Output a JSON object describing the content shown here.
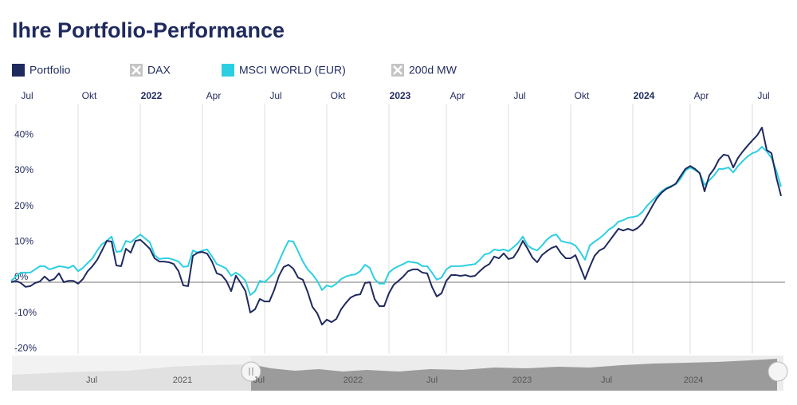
{
  "chart_data": {
    "type": "line",
    "title": "Ihre Portfolio-Performance",
    "categories": [
      null,
      "Jul",
      null,
      null,
      null,
      null,
      null,
      null,
      null,
      null,
      null,
      null,
      null,
      null,
      "Okt",
      null,
      null,
      null,
      null,
      null,
      null,
      null,
      null,
      null,
      null,
      null,
      null,
      "2022",
      null,
      null,
      null,
      null,
      null,
      null,
      null,
      null,
      null,
      null,
      null,
      null,
      "Apr",
      null,
      null,
      null,
      null,
      null,
      null,
      null,
      null,
      null,
      null,
      null,
      null,
      "Jul",
      null,
      null,
      null,
      null,
      null,
      null,
      null,
      null,
      null,
      null,
      null,
      null,
      "Okt",
      null,
      null,
      null,
      null,
      null,
      null,
      null,
      null,
      null,
      null,
      null,
      null,
      "2023",
      null,
      null,
      null,
      null,
      null,
      null,
      null,
      null,
      null,
      null,
      null,
      "Apr",
      null,
      null,
      null,
      null,
      null,
      null,
      null,
      null,
      null,
      null,
      null,
      null,
      "Jul",
      null,
      null,
      null,
      null,
      null,
      null,
      null,
      null,
      null,
      null,
      null,
      null,
      "Okt",
      null,
      null,
      null,
      null,
      null,
      null,
      null,
      null,
      null,
      null,
      null,
      null,
      "2024",
      null,
      null,
      null,
      null,
      null,
      null,
      null,
      null,
      null,
      null,
      null,
      "Apr",
      null,
      null,
      null,
      null,
      null,
      null,
      null,
      null,
      null,
      null,
      null,
      null,
      "Jul",
      null,
      null,
      null,
      null,
      null,
      null
    ],
    "series": [
      {
        "name": "Portfolio",
        "color": "#1f2a5e",
        "values": [
          0.0,
          0.4,
          -0.2,
          -1.3,
          -1.1,
          -0.2,
          0.2,
          1.6,
          0.4,
          0.9,
          2.5,
          0.0,
          0.4,
          0.4,
          -0.4,
          0.9,
          3.1,
          4.5,
          6.3,
          8.9,
          11.6,
          11.4,
          4.7,
          4.5,
          9.4,
          8.3,
          11.6,
          11.9,
          10.7,
          9.4,
          6.7,
          5.8,
          5.8,
          5.6,
          5.1,
          3.1,
          -0.9,
          -1.1,
          7.4,
          8.3,
          8.5,
          8.0,
          5.8,
          2.5,
          2.0,
          0.4,
          -2.5,
          1.8,
          -0.2,
          -2.5,
          -8.5,
          -7.6,
          -4.7,
          -5.4,
          -5.4,
          -2.2,
          1.8,
          4.3,
          4.9,
          3.8,
          1.3,
          0.7,
          -2.7,
          -6.9,
          -8.7,
          -11.9,
          -10.5,
          -11.2,
          -10.3,
          -7.6,
          -5.8,
          -4.3,
          -3.6,
          -3.4,
          -0.2,
          0.0,
          -4.7,
          -6.7,
          -6.7,
          -3.1,
          -0.7,
          0.4,
          1.6,
          3.1,
          3.6,
          3.6,
          2.7,
          2.5,
          -1.3,
          -4.0,
          -3.1,
          0.4,
          2.0,
          2.0,
          1.8,
          2.0,
          1.6,
          1.8,
          3.1,
          4.3,
          5.1,
          7.2,
          6.7,
          8.1,
          6.5,
          6.9,
          8.9,
          11.6,
          9.4,
          6.9,
          5.6,
          7.6,
          8.7,
          9.6,
          10.1,
          8.1,
          6.7,
          6.7,
          7.6,
          4.3,
          0.9,
          4.3,
          7.4,
          8.9,
          9.6,
          11.4,
          13.2,
          15.0,
          14.5,
          15.0,
          14.5,
          15.2,
          16.5,
          18.8,
          21.2,
          23.5,
          25.1,
          26.2,
          26.8,
          27.7,
          29.8,
          31.8,
          32.6,
          31.8,
          30.6,
          25.5,
          30.0,
          31.8,
          34.4,
          35.8,
          35.5,
          32.2,
          34.9,
          36.7,
          38.3,
          39.8,
          41.2,
          43.4,
          37.1,
          36.2,
          29.5,
          24.2
        ]
      },
      {
        "name": "DAX",
        "visible": false
      },
      {
        "name": "MSCI WORLD (EUR)",
        "color": "#2ccfe2",
        "values": [
          0.4,
          1.6,
          2.7,
          2.7,
          2.7,
          3.6,
          4.5,
          4.5,
          3.6,
          4.0,
          4.5,
          4.3,
          4.0,
          4.7,
          3.1,
          4.0,
          5.4,
          6.7,
          8.9,
          10.7,
          11.6,
          12.8,
          8.5,
          8.7,
          11.6,
          11.2,
          12.3,
          13.4,
          12.3,
          11.2,
          7.6,
          6.5,
          6.7,
          6.7,
          6.3,
          5.8,
          4.3,
          4.5,
          8.9,
          8.3,
          8.9,
          9.2,
          7.2,
          5.1,
          4.5,
          3.8,
          1.8,
          2.7,
          1.8,
          0.4,
          -3.6,
          -2.5,
          0.4,
          0.0,
          1.3,
          2.7,
          5.8,
          8.9,
          11.6,
          11.4,
          8.7,
          5.8,
          3.6,
          2.2,
          0.4,
          -2.2,
          -0.9,
          -1.3,
          -0.4,
          0.9,
          1.6,
          2.0,
          2.2,
          3.1,
          4.9,
          4.0,
          0.9,
          -0.4,
          -0.4,
          2.7,
          3.8,
          4.5,
          5.1,
          5.8,
          5.6,
          5.4,
          4.5,
          4.5,
          2.7,
          0.7,
          1.3,
          3.6,
          4.5,
          4.5,
          4.5,
          4.7,
          4.9,
          5.1,
          6.3,
          7.8,
          8.1,
          9.2,
          8.9,
          9.2,
          8.7,
          9.8,
          11.0,
          12.8,
          10.3,
          9.4,
          8.9,
          10.3,
          11.9,
          13.0,
          13.4,
          11.6,
          11.2,
          11.0,
          10.3,
          8.5,
          6.3,
          10.3,
          11.4,
          12.3,
          13.4,
          14.8,
          15.6,
          17.0,
          17.4,
          18.1,
          18.3,
          18.6,
          19.7,
          21.5,
          22.8,
          24.1,
          25.5,
          26.4,
          27.0,
          27.5,
          29.1,
          31.3,
          32.2,
          31.5,
          30.6,
          27.3,
          28.6,
          30.0,
          31.8,
          31.8,
          32.2,
          30.8,
          32.6,
          34.0,
          35.3,
          36.2,
          36.7,
          38.0,
          36.7,
          34.9,
          31.3,
          26.8
        ]
      },
      {
        "name": "200d MW",
        "visible": false
      }
    ],
    "ylim": [
      -20,
      50
    ],
    "yticks": [
      {
        "value": -20,
        "label": "-20%"
      },
      {
        "value": -10,
        "label": "-10%"
      },
      {
        "value": 0,
        "label": "0%"
      },
      {
        "value": 10,
        "label": "10%"
      },
      {
        "value": 20,
        "label": "20%"
      },
      {
        "value": 30,
        "label": "30%"
      },
      {
        "value": 40,
        "label": "40%"
      }
    ],
    "grid": true
  },
  "navigator": {
    "labels": [
      "Jul",
      "2021",
      "Jul",
      "2022",
      "Jul",
      "2023",
      "Jul",
      "2024"
    ]
  }
}
